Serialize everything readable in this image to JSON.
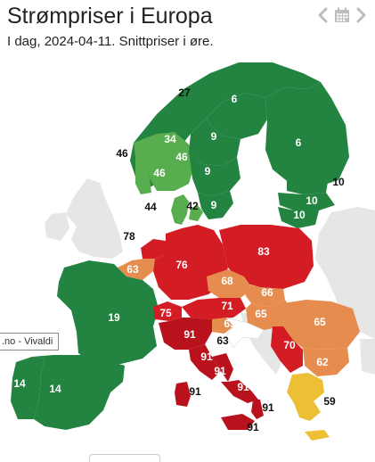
{
  "header": {
    "title": "Strømpriser i Europa",
    "subtitle": "I dag, 2024-04-11. Snittpriser i øre."
  },
  "nav": {
    "prev_icon": "chevron-left-icon",
    "calendar_icon": "calendar-icon",
    "next_icon": "chevron-right-icon"
  },
  "attribution": {
    "text": ".no - Vivaldi"
  },
  "colors": {
    "dark_green": "#238341",
    "light_green": "#58ad4e",
    "red": "#d41c25",
    "dark_red": "#b9121c",
    "orange": "#e58c4e",
    "yellow": "#ecbf35",
    "no_data": "#e6e6e6",
    "water": "#ffffff"
  },
  "map": {
    "labels": [
      {
        "id": "no-north",
        "text": "27"
      },
      {
        "id": "se-se1",
        "text": "6"
      },
      {
        "id": "fi",
        "text": "6"
      },
      {
        "id": "se-se2",
        "text": "9"
      },
      {
        "id": "no-mid",
        "text": "34"
      },
      {
        "id": "no-west",
        "text": "46"
      },
      {
        "id": "no-east",
        "text": "46"
      },
      {
        "id": "no-south",
        "text": "46"
      },
      {
        "id": "se-se3",
        "text": "9"
      },
      {
        "id": "se-se4",
        "text": "9"
      },
      {
        "id": "dk-west",
        "text": "44"
      },
      {
        "id": "dk-east",
        "text": "42"
      },
      {
        "id": "ee",
        "text": "10"
      },
      {
        "id": "lv",
        "text": "10"
      },
      {
        "id": "lt",
        "text": "10"
      },
      {
        "id": "nl",
        "text": "78"
      },
      {
        "id": "de",
        "text": "76"
      },
      {
        "id": "pl",
        "text": "83"
      },
      {
        "id": "be",
        "text": "63"
      },
      {
        "id": "cz",
        "text": "68"
      },
      {
        "id": "sk",
        "text": "66"
      },
      {
        "id": "at",
        "text": "71"
      },
      {
        "id": "hu",
        "text": "65"
      },
      {
        "id": "ro",
        "text": "65"
      },
      {
        "id": "fr",
        "text": "19"
      },
      {
        "id": "ch",
        "text": "75"
      },
      {
        "id": "si",
        "text": "63"
      },
      {
        "id": "it-north",
        "text": "91"
      },
      {
        "id": "hr",
        "text": "63"
      },
      {
        "id": "rs",
        "text": "70"
      },
      {
        "id": "bg",
        "text": "62"
      },
      {
        "id": "it-cnor",
        "text": "91"
      },
      {
        "id": "it-csud",
        "text": "91"
      },
      {
        "id": "it-sud",
        "text": "91"
      },
      {
        "id": "it-sard",
        "text": "91"
      },
      {
        "id": "it-calab",
        "text": "91"
      },
      {
        "id": "it-sic",
        "text": "91"
      },
      {
        "id": "pt",
        "text": "14"
      },
      {
        "id": "es",
        "text": "14"
      },
      {
        "id": "gr",
        "text": "59"
      }
    ]
  }
}
